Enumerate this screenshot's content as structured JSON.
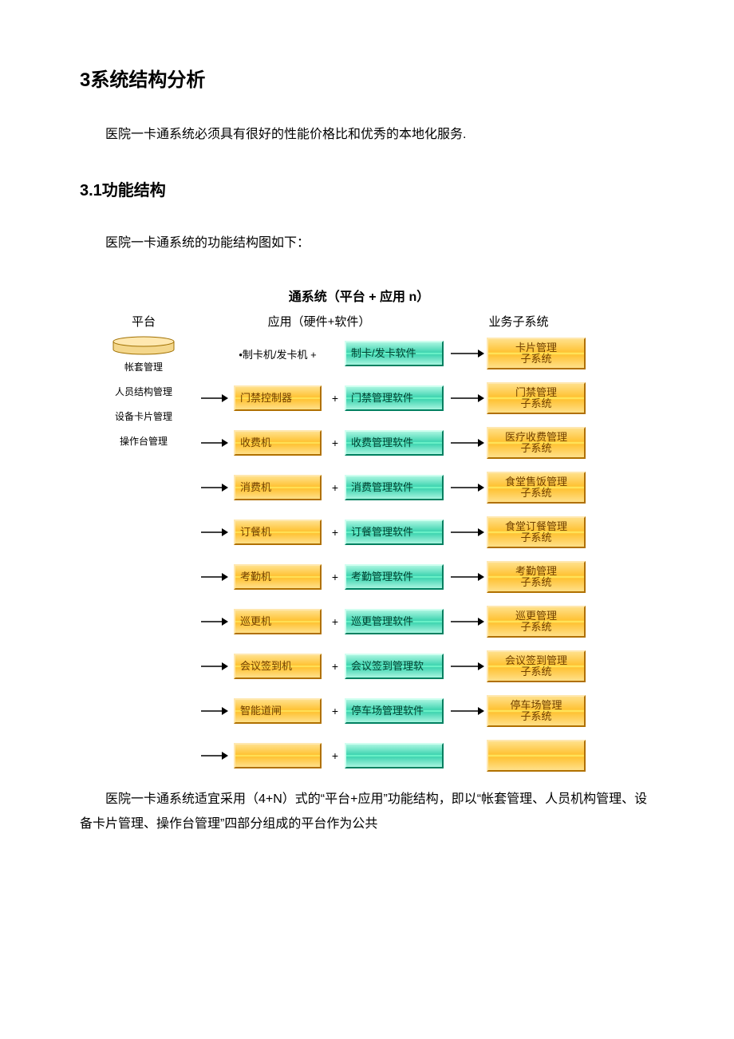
{
  "heading": "3系统结构分析",
  "intro": "医院一卡通系统必须具有很好的性能价格比和优秀的本地化服务.",
  "subheading": "3.1功能结构",
  "intro2": "医院一卡通系统的功能结构图如下：",
  "diagram": {
    "title": "通系统（平台 + 应用 n）",
    "col_platform": "平台",
    "col_app": "应用（硬件+软件）",
    "col_sub": "业务子系统",
    "platform_labels": [
      "帐套管理",
      "人员结构管理",
      "设备卡片管理",
      "操作台管理"
    ],
    "colors": {
      "orange_grad_top": "#ffe08a",
      "orange_grad_mid": "#ffc233",
      "orange_border_dark": "#b07000",
      "cyan_grad_top": "#a8f5e0",
      "cyan_grad_mid": "#3fd4b0",
      "cyan_border_dark": "#008060",
      "arrow": "#000000",
      "text_dark": "#000000",
      "cylinder_fill": "#f4d78c",
      "cylinder_stroke": "#a07000"
    },
    "rows": [
      {
        "show_arrow_in": false,
        "hardware_plain": "•制卡机/发卡机 +",
        "hardware": "",
        "plus": "",
        "software": "制卡/发卡软件",
        "subsystem": "卡片管理\n子系统"
      },
      {
        "show_arrow_in": true,
        "hardware": "门禁控制器",
        "plus": "+",
        "software": "门禁管理软件",
        "subsystem": "门禁管理\n子系统"
      },
      {
        "show_arrow_in": true,
        "hardware": "收费机",
        "plus": "+",
        "software": "收费管理软件",
        "subsystem": "医疗收费管理\n子系统"
      },
      {
        "show_arrow_in": true,
        "hardware": "消费机",
        "plus": "+",
        "software": "消费管理软件",
        "subsystem": "食堂售饭管理\n子系统"
      },
      {
        "show_arrow_in": true,
        "hardware": "订餐机",
        "plus": "+",
        "software": "订餐管理软件",
        "subsystem": "食堂订餐管理\n子系统"
      },
      {
        "show_arrow_in": true,
        "hardware": "考勤机",
        "plus": "+",
        "software": "考勤管理软件",
        "subsystem": "考勤管理\n子系统"
      },
      {
        "show_arrow_in": true,
        "hardware": "巡更机",
        "plus": "+",
        "software": "巡更管理软件",
        "subsystem": "巡更管理\n子系统"
      },
      {
        "show_arrow_in": true,
        "hardware": "会议签到机",
        "plus": "+",
        "software": "会议签到管理软",
        "subsystem": "会议签到管理\n子系统"
      },
      {
        "show_arrow_in": true,
        "hardware": "智能道闸",
        "plus": "+",
        "software": "停车场管理软件",
        "subsystem": "停车场管理\n子系统"
      },
      {
        "show_arrow_in": true,
        "hardware": "",
        "plus": "+",
        "software": "",
        "subsystem": ""
      }
    ]
  },
  "closing": "医院一卡通系统适宜采用（4+N）式的“平台+应用”功能结构，即以“帐套管理、人员机构管理、设备卡片管理、操作台管理”四部分组成的平台作为公共"
}
